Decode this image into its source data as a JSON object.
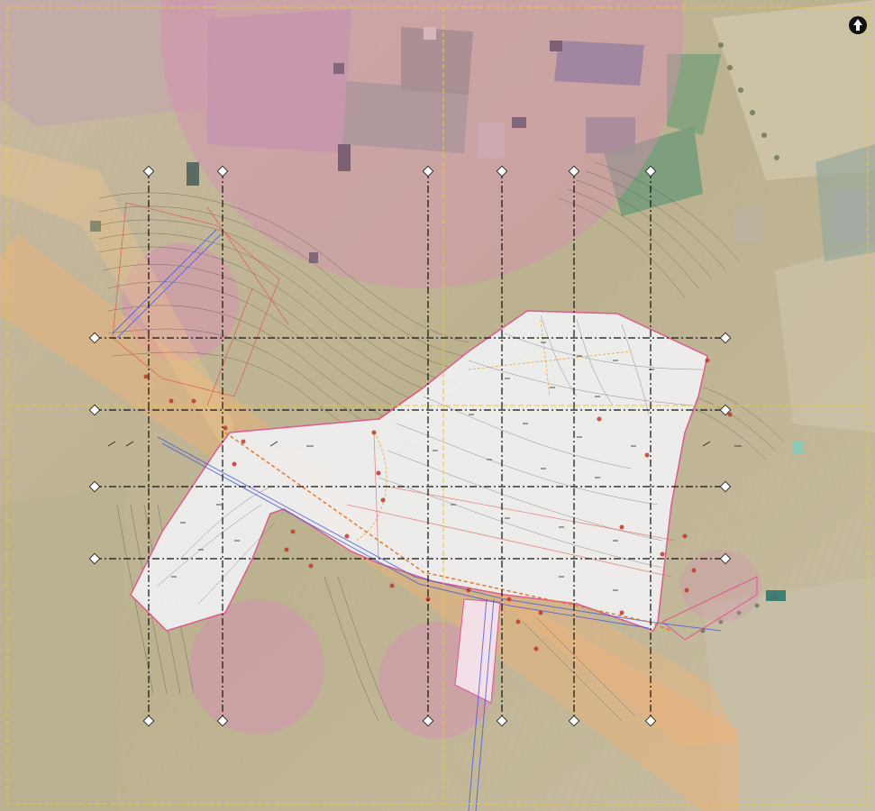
{
  "map": {
    "type": "aerial site plan",
    "north_arrow": "north-arrow-icon",
    "colors": {
      "exclusion_zone": "#d88fb4",
      "buffer_corridor": "#f0b277",
      "site_fill": "#f2f2f4",
      "site_outline": "#e0558f",
      "grid_line": "#111111",
      "frame": "#f0c43c",
      "road_blue": "#4a5bd8",
      "points": "#c0392b"
    },
    "grid_columns": [
      "",
      "",
      "",
      "",
      "",
      "",
      "",
      ""
    ],
    "grid_rows": [
      "",
      "",
      "",
      ""
    ]
  }
}
